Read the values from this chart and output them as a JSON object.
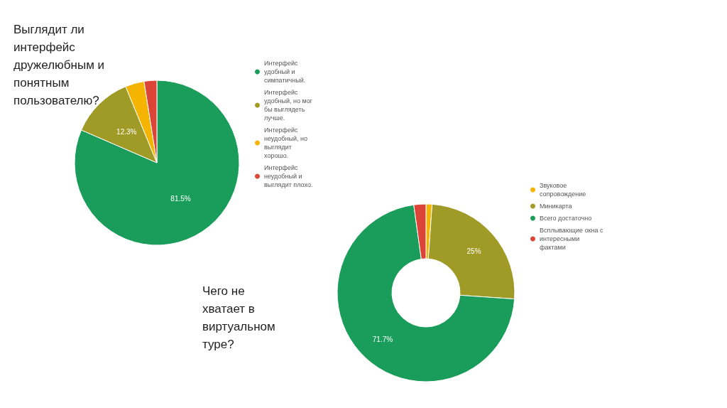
{
  "chart_data": [
    {
      "type": "pie",
      "title": "Выглядит ли интерфейс дружелюбным и понятным пользователю?",
      "categories": [
        "Интерфейс удобный и симпатичный.",
        "Интерфейс удобный, но мог бы выглядеть лучше.",
        "Интерфейс неудобный, но выглядит хорошо.",
        "Интерфейс неудобный и выглядит плохо."
      ],
      "values": [
        81.5,
        12.3,
        3.7,
        2.5
      ],
      "colors": [
        "#1a9c5a",
        "#a09a27",
        "#f4b400",
        "#db4437"
      ],
      "value_labels": [
        "81.5%",
        "12.3%",
        null,
        null
      ],
      "legend": "right"
    },
    {
      "type": "donut",
      "title": "Чего не хватает в виртуальном туре?",
      "categories": [
        "Звуковое сопровождение",
        "Миникарта",
        "Всего достаточно",
        "Всплывающие окна с интересными фактами"
      ],
      "values": [
        1.1,
        25,
        71.7,
        2.2
      ],
      "colors": [
        "#f4b400",
        "#a09a27",
        "#1a9c5a",
        "#db4437"
      ],
      "value_labels": [
        null,
        "25%",
        "71.7%",
        null
      ],
      "legend": "right"
    }
  ]
}
